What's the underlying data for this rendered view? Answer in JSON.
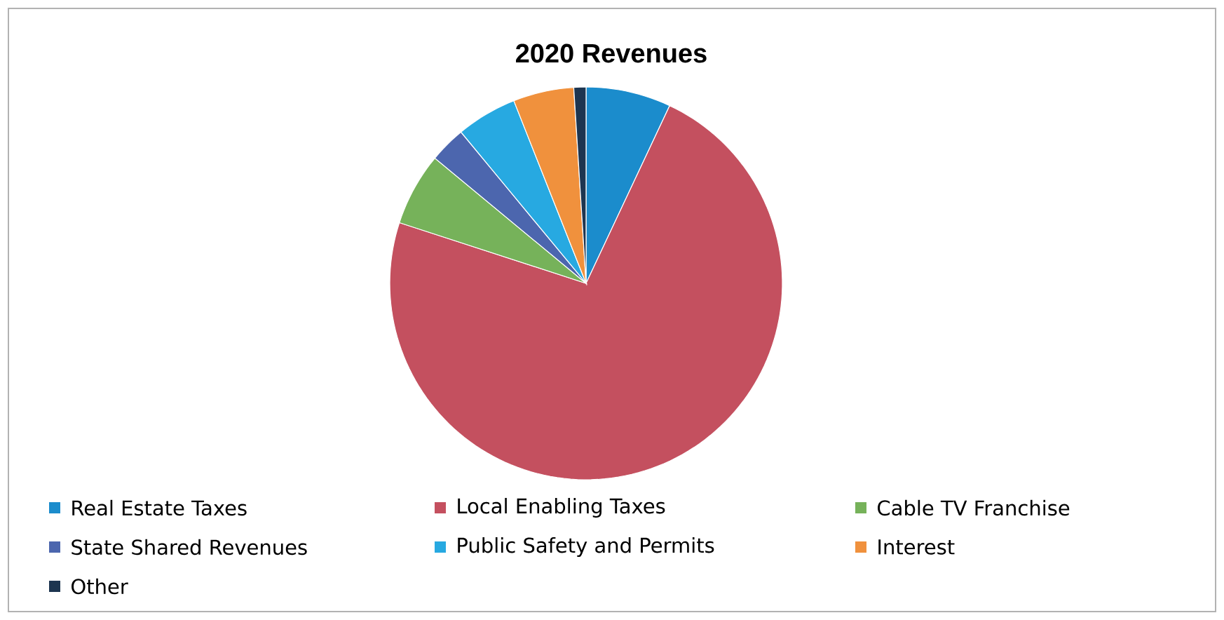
{
  "chart_data": {
    "type": "pie",
    "title": "2020 Revenues",
    "categories": [
      "Real Estate Taxes",
      "Local Enabling Taxes",
      "Cable TV Franchise",
      "State Shared Revenues",
      "Public Safety and Permits",
      "Interest",
      "Other"
    ],
    "values": [
      7,
      73,
      6,
      3,
      5,
      5,
      1
    ],
    "colors": [
      "#1b8ccc",
      "#c4505f",
      "#76b25a",
      "#4c66ae",
      "#27a9e1",
      "#f0913d",
      "#1d3550"
    ],
    "legend": "bottom"
  }
}
